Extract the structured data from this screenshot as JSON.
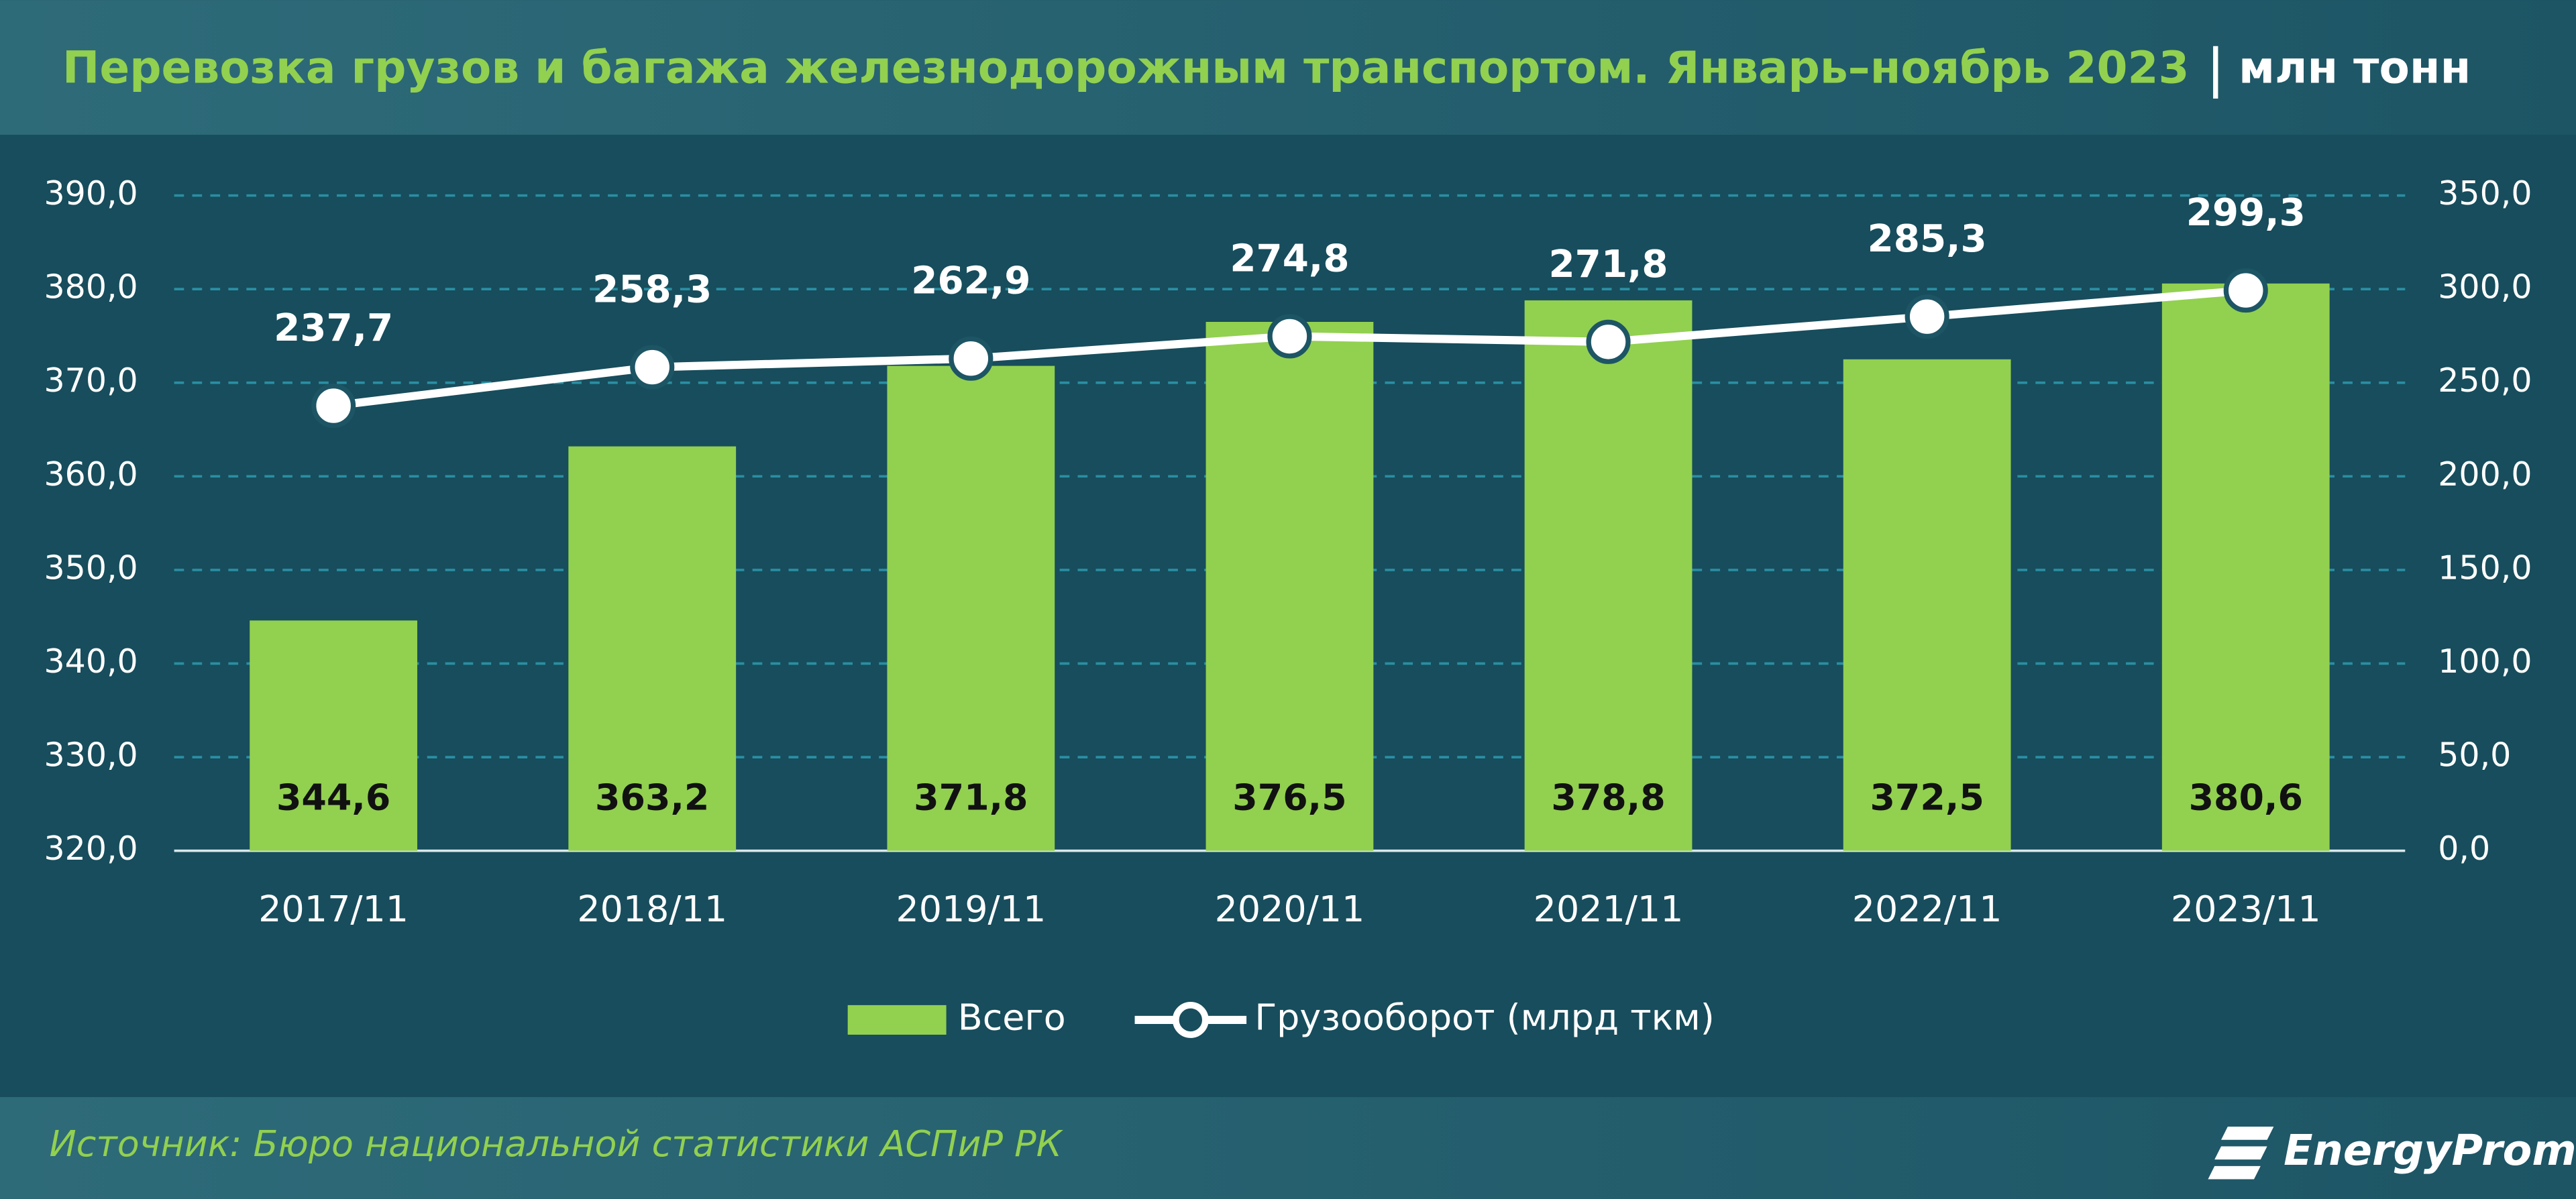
{
  "chart_data": {
    "type": "bar-line",
    "title": "Перевозка грузов и багажа железнодорожным транспортом. Январь–ноябрь 2023",
    "unit": "млн тонн",
    "source": "Источник: Бюро национальной статистики АСПиР РК",
    "brand": "EnergyProm",
    "categories": [
      "2017/11",
      "2018/11",
      "2019/11",
      "2020/11",
      "2021/11",
      "2022/11",
      "2023/11"
    ],
    "series": [
      {
        "name": "Всего",
        "type": "bar",
        "color": "#92d050",
        "values": [
          344.6,
          363.2,
          371.8,
          376.5,
          378.8,
          372.5,
          380.6
        ],
        "value_labels": [
          "344,6",
          "363,2",
          "371,8",
          "376,5",
          "378,8",
          "372,5",
          "380,6"
        ]
      },
      {
        "name": "Грузооборот (млрд ткм)",
        "type": "line",
        "axis": "y2",
        "color": "#ffffff",
        "values": [
          237.7,
          258.3,
          262.9,
          274.8,
          271.8,
          285.3,
          299.3
        ],
        "value_labels": [
          "237,7",
          "258,3",
          "262,9",
          "274,8",
          "271,8",
          "285,3",
          "299,3"
        ]
      }
    ],
    "ylim": [
      320,
      390
    ],
    "yticks": [
      {
        "value": 320,
        "label": "320,0"
      },
      {
        "value": 330,
        "label": "330,0"
      },
      {
        "value": 340,
        "label": "340,0"
      },
      {
        "value": 350,
        "label": "350,0"
      },
      {
        "value": 360,
        "label": "360,0"
      },
      {
        "value": 370,
        "label": "370,0"
      },
      {
        "value": 380,
        "label": "380,0"
      },
      {
        "value": 390,
        "label": "390,0"
      }
    ],
    "y2lim": [
      0,
      350
    ],
    "y2ticks": [
      {
        "value": 0,
        "label": "0,0"
      },
      {
        "value": 50,
        "label": "50,0"
      },
      {
        "value": 100,
        "label": "100,0"
      },
      {
        "value": 150,
        "label": "150,0"
      },
      {
        "value": 200,
        "label": "200,0"
      },
      {
        "value": 250,
        "label": "250,0"
      },
      {
        "value": 300,
        "label": "300,0"
      },
      {
        "value": 350,
        "label": "350,0"
      }
    ],
    "grid": true,
    "legend": "bottom"
  }
}
